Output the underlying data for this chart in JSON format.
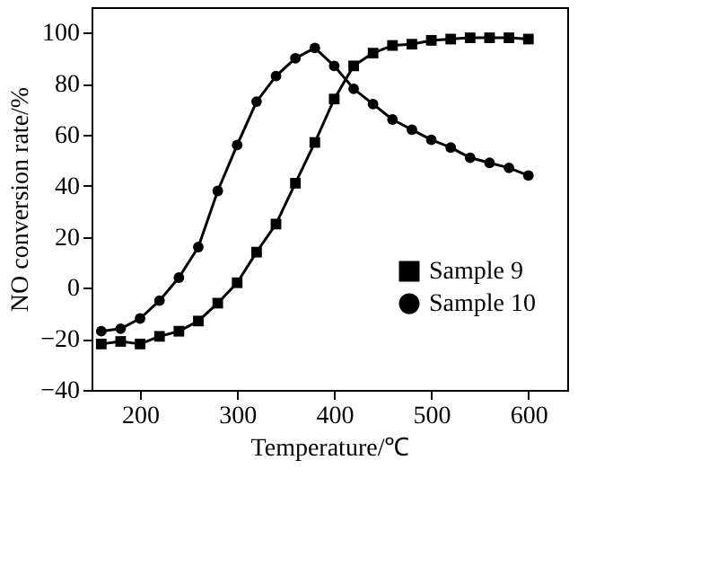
{
  "chart_data": {
    "type": "line",
    "xlabel": "Temperature/℃",
    "ylabel": "NO conversion rate/%",
    "x": [
      160,
      180,
      200,
      220,
      240,
      260,
      280,
      300,
      320,
      340,
      360,
      380,
      400,
      420,
      440,
      460,
      480,
      500,
      520,
      540,
      560,
      580,
      600
    ],
    "series": [
      {
        "name": "Sample 9",
        "color": "#000000",
        "marker": "square",
        "values": [
          -22,
          -21,
          -22,
          -19,
          -17,
          -13,
          -6,
          2,
          14,
          25,
          41,
          57,
          74,
          87,
          92,
          95,
          95.5,
          97,
          97.5,
          98,
          98,
          98,
          97.5
        ]
      },
      {
        "name": "Sample 10",
        "color": "#000000",
        "marker": "circle",
        "values": [
          -17,
          -16,
          -12,
          -5,
          4,
          16,
          38,
          56,
          73,
          83,
          90,
          94,
          87,
          78,
          72,
          66,
          62,
          58,
          55,
          51,
          49,
          47,
          44
        ]
      }
    ],
    "xlim": [
      150,
      640
    ],
    "ylim": [
      -40,
      110
    ],
    "xticks": [
      200,
      300,
      400,
      500,
      600
    ],
    "yticks": [
      -40,
      -20,
      0,
      20,
      40,
      60,
      80,
      100
    ],
    "grid": false,
    "legend": "right",
    "line_style": "solid"
  }
}
